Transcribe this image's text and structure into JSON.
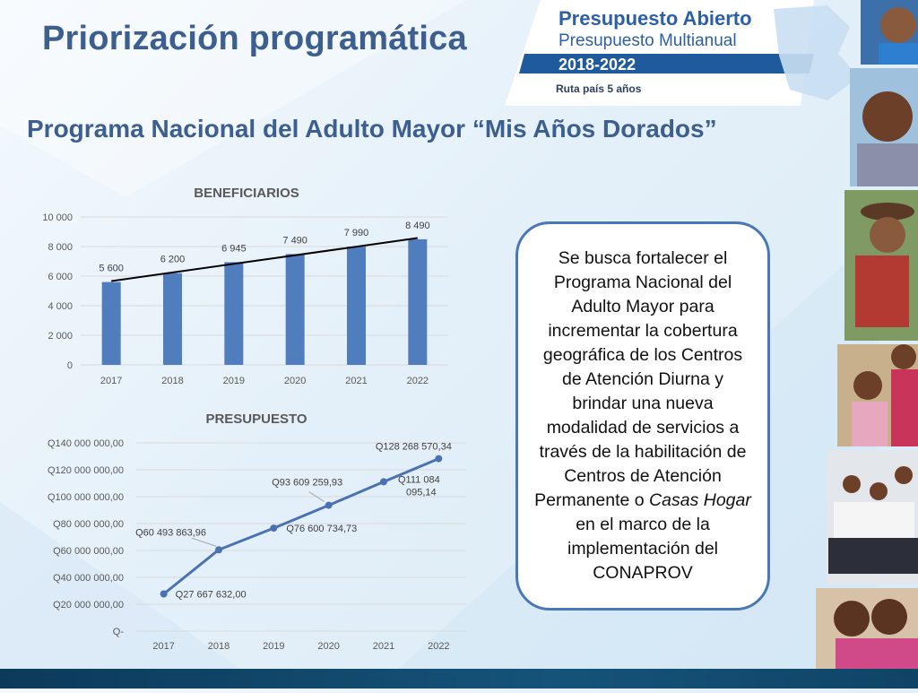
{
  "slide": {
    "title": "Priorización programática",
    "subtitle": "Programa Nacional del Adulto Mayor “Mis Años Dorados”"
  },
  "logo": {
    "line1": "Presupuesto Abierto",
    "line2": "Presupuesto Multianual",
    "line3": "2018-2022",
    "line4": "Ruta país 5 años"
  },
  "callout": {
    "part1": "Se busca fortalecer el Programa Nacional del Adulto Mayor para incrementar la cobertura geográfica de los Centros de Atención Diurna y brindar una nueva modalidad de servicios a través de la habilitación de Centros de Atención Permanente o ",
    "italic1": "Casas Hogar",
    "part2": " en el marco de la implementación del CONAPROV"
  },
  "colors": {
    "accent": "#3c5f8f",
    "bar": "#4f7dbd",
    "line": "#4a72b0",
    "trend": "#000000"
  },
  "chart_data": [
    {
      "type": "bar",
      "title": "BENEFICIARIOS",
      "categories": [
        "2017",
        "2018",
        "2019",
        "2020",
        "2021",
        "2022"
      ],
      "values": [
        5600,
        6200,
        6945,
        7490,
        7990,
        8490
      ],
      "value_labels": [
        "5 600",
        "6 200",
        "6 945",
        "7 490",
        "7 990",
        "8 490"
      ],
      "yticks": [
        "0",
        "2 000",
        "4 000",
        "6 000",
        "8 000",
        "10 000"
      ],
      "ylim": [
        0,
        10000
      ],
      "trendline": "linear",
      "grid": true
    },
    {
      "type": "line",
      "title": "PRESUPUESTO",
      "categories": [
        "2017",
        "2018",
        "2019",
        "2020",
        "2021",
        "2022"
      ],
      "values": [
        27667632.0,
        60493863.96,
        76600734.73,
        93609259.93,
        111084095.14,
        128268570.34
      ],
      "value_labels": [
        "Q27 667 632,00",
        "Q60 493 863,96",
        "Q76 600 734,73",
        "Q93 609 259,93",
        "Q111 084 095,14",
        "Q128 268 570,34"
      ],
      "yticks": [
        "Q-",
        "Q20 000 000,00",
        "Q40 000 000,00",
        "Q60 000 000,00",
        "Q80 000 000,00",
        "Q100 000 000,00",
        "Q120 000 000,00",
        "Q140 000 000,00"
      ],
      "ylim": [
        0,
        140000000
      ],
      "grid": true
    }
  ]
}
